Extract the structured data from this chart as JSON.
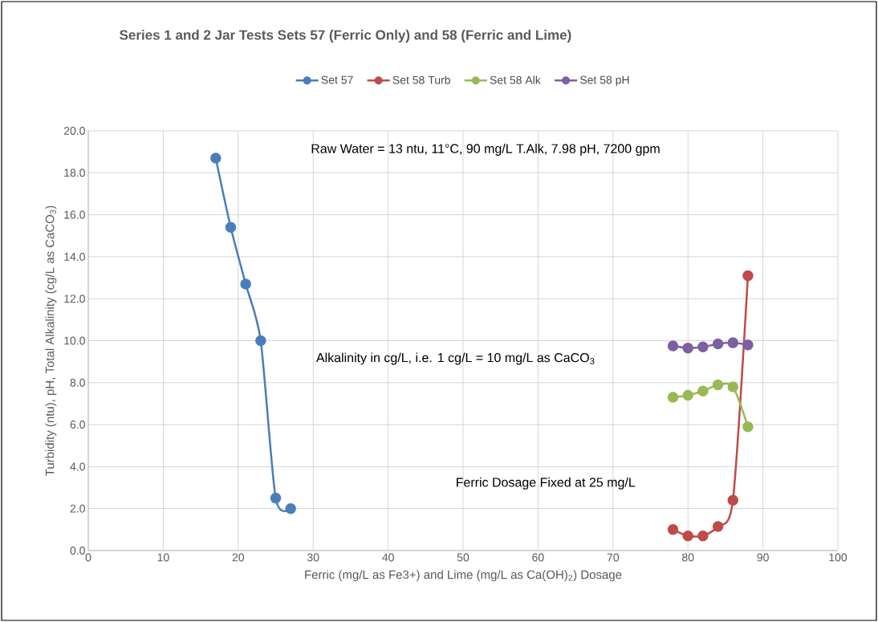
{
  "chart_data": {
    "type": "line",
    "title": "Series 1 and 2 Jar Tests Sets 57 (Ferric Only) and 58 (Ferric and Lime)",
    "xlabel": "Ferric (mg/L as Fe3+) and Lime (mg/L as Ca(OH)$_{2}$) Dosage",
    "ylabel": "Turbidity (ntu), pH, Total Alkalinity (cg/L as CaCO$_{3}$)",
    "annotations": [
      "Raw Water = 13 ntu, 11°C, 90 mg/L T.Alk, 7.98 pH, 7200 gpm",
      "Alkalinity in cg/L, i.e. 1 cg/L = 10 mg/L as CaCO$_{3}$",
      "Ferric Dosage Fixed at 25 mg/L"
    ],
    "series": [
      {
        "name": "Set 57",
        "color": "#4a7ebb",
        "x": [
          17,
          19,
          21,
          23,
          25,
          27
        ],
        "values": [
          18.7,
          15.4,
          12.7,
          10.0,
          2.5,
          2.0
        ]
      },
      {
        "name": "Set 58 Turb",
        "color": "#be4b48",
        "x": [
          78,
          80,
          82,
          84,
          86,
          88
        ],
        "values": [
          1.0,
          0.7,
          0.7,
          1.15,
          2.4,
          13.1
        ]
      },
      {
        "name": "Set 58 Alk",
        "color": "#98b954",
        "x": [
          78,
          80,
          82,
          84,
          86,
          88
        ],
        "values": [
          7.3,
          7.4,
          7.6,
          7.9,
          7.8,
          5.9
        ]
      },
      {
        "name": "Set 58 pH",
        "color": "#7d60a0",
        "x": [
          78,
          80,
          82,
          84,
          86,
          88
        ],
        "values": [
          9.75,
          9.65,
          9.7,
          9.85,
          9.9,
          9.8
        ]
      }
    ],
    "xlim": [
      0,
      100
    ],
    "xticks": [
      0,
      10,
      20,
      30,
      40,
      50,
      60,
      70,
      80,
      90,
      100
    ],
    "ylim": [
      0,
      20
    ],
    "yticks": [
      {
        "value": 0,
        "label": "0.0"
      },
      {
        "value": 2,
        "label": "2.0"
      },
      {
        "value": 4,
        "label": "4.0"
      },
      {
        "value": 6,
        "label": "6.0"
      },
      {
        "value": 8,
        "label": "8.0"
      },
      {
        "value": 10,
        "label": "10.0"
      },
      {
        "value": 12,
        "label": "12.0"
      },
      {
        "value": 14,
        "label": "14.0"
      },
      {
        "value": 16,
        "label": "16.0"
      },
      {
        "value": 18,
        "label": "18.0"
      },
      {
        "value": 20,
        "label": "20.0"
      }
    ],
    "grid": true,
    "legend": "top",
    "marker": "circle",
    "line_style": "solid"
  }
}
